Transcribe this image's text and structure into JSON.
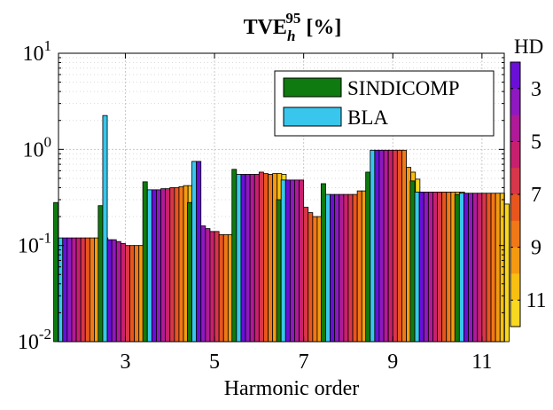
{
  "chart_data": {
    "type": "bar",
    "title_main": "TVE",
    "title_sub": "h",
    "title_sup": "95",
    "title_suffix": " [%]",
    "xlabel": "Harmonic order",
    "ylabel": "",
    "yscale": "log",
    "ylim": [
      0.01,
      10
    ],
    "ytick_mantissa": "10",
    "yticks": [
      {
        "value": 0.01,
        "exp": "-2"
      },
      {
        "value": 0.1,
        "exp": "-1"
      },
      {
        "value": 1,
        "exp": "0"
      },
      {
        "value": 10,
        "exp": "1"
      }
    ],
    "categories": [
      2,
      3,
      4,
      5,
      6,
      7,
      8,
      9,
      10,
      11
    ],
    "xtick_labels": [
      "3",
      "5",
      "7",
      "9",
      "11"
    ],
    "grid": true,
    "legend_position": "top-right",
    "legend": [
      {
        "label": "SINDICOMP",
        "color": "#0f7a0f"
      },
      {
        "label": "BLA",
        "color": "#39c6ec"
      }
    ],
    "series": [
      {
        "name": "SINDICOMP",
        "color": "#0f7a0f",
        "values": [
          0.28,
          0.26,
          0.46,
          0.28,
          0.62,
          0.3,
          0.44,
          0.58,
          0.47,
          0.34
        ]
      },
      {
        "name": "BLA",
        "color": "#39c6ec",
        "values": [
          0.12,
          2.25,
          0.38,
          0.75,
          0.55,
          0.48,
          0.34,
          0.98,
          0.36,
          0.35
        ]
      }
    ],
    "hd_colorbar": {
      "title": "HD",
      "tick_labels": [
        "3",
        "5",
        "7",
        "9",
        "11"
      ],
      "colors": [
        "#6a0fd8",
        "#8f18c0",
        "#b01a98",
        "#c8206e",
        "#d8364a",
        "#e8561e",
        "#f07816",
        "#f59a10",
        "#f8bf10",
        "#f8d820"
      ]
    },
    "hd_values": [
      [
        0.12,
        0.12,
        0.12,
        0.12,
        0.12,
        0.12,
        0.12,
        0.12,
        0.12,
        0.12
      ],
      [
        0.115,
        0.115,
        0.11,
        0.105,
        0.1,
        0.1,
        0.1,
        0.1,
        0.098,
        0.098
      ],
      [
        0.38,
        0.38,
        0.39,
        0.39,
        0.4,
        0.4,
        0.41,
        0.42,
        0.42,
        0.42
      ],
      [
        0.75,
        0.16,
        0.15,
        0.14,
        0.14,
        0.13,
        0.13,
        0.13,
        0.13,
        0.13
      ],
      [
        0.55,
        0.55,
        0.55,
        0.55,
        0.58,
        0.56,
        0.55,
        0.56,
        0.56,
        0.55
      ],
      [
        0.48,
        0.48,
        0.48,
        0.48,
        0.25,
        0.22,
        0.2,
        0.2,
        0.19,
        0.19
      ],
      [
        0.34,
        0.34,
        0.34,
        0.34,
        0.34,
        0.34,
        0.37,
        0.37,
        0.36,
        0.36
      ],
      [
        0.98,
        0.98,
        0.98,
        0.98,
        0.98,
        0.98,
        0.98,
        0.65,
        0.58,
        0.49
      ],
      [
        0.36,
        0.36,
        0.36,
        0.36,
        0.36,
        0.36,
        0.36,
        0.36,
        0.36,
        0.36
      ],
      [
        0.35,
        0.35,
        0.35,
        0.35,
        0.35,
        0.35,
        0.35,
        0.35,
        0.35,
        0.27
      ]
    ]
  }
}
